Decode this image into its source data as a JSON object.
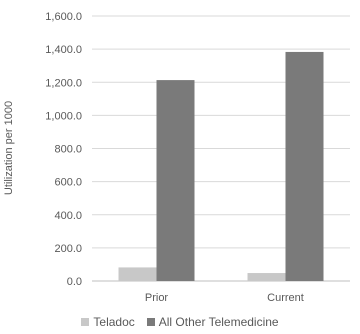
{
  "chart_data": {
    "type": "bar",
    "title": "",
    "xlabel": "",
    "ylabel": "Utilization per 1000",
    "categories": [
      "Prior",
      "Current"
    ],
    "ylim": [
      0,
      1600
    ],
    "yticks": [
      "0.0",
      "200.0",
      "400.0",
      "600.0",
      "800.0",
      "1,000.0",
      "1,200.0",
      "1,400.0",
      "1,600.0"
    ],
    "ytick_values": [
      0,
      200,
      400,
      600,
      800,
      1000,
      1200,
      1400,
      1600
    ],
    "grid": true,
    "legend_position": "bottom",
    "series": [
      {
        "name": "Teladoc",
        "color": "#c8c8c8",
        "values": [
          82,
          48
        ]
      },
      {
        "name": "All Other Telemedicine",
        "color": "#7a7a7a",
        "values": [
          1213,
          1383
        ]
      }
    ]
  }
}
